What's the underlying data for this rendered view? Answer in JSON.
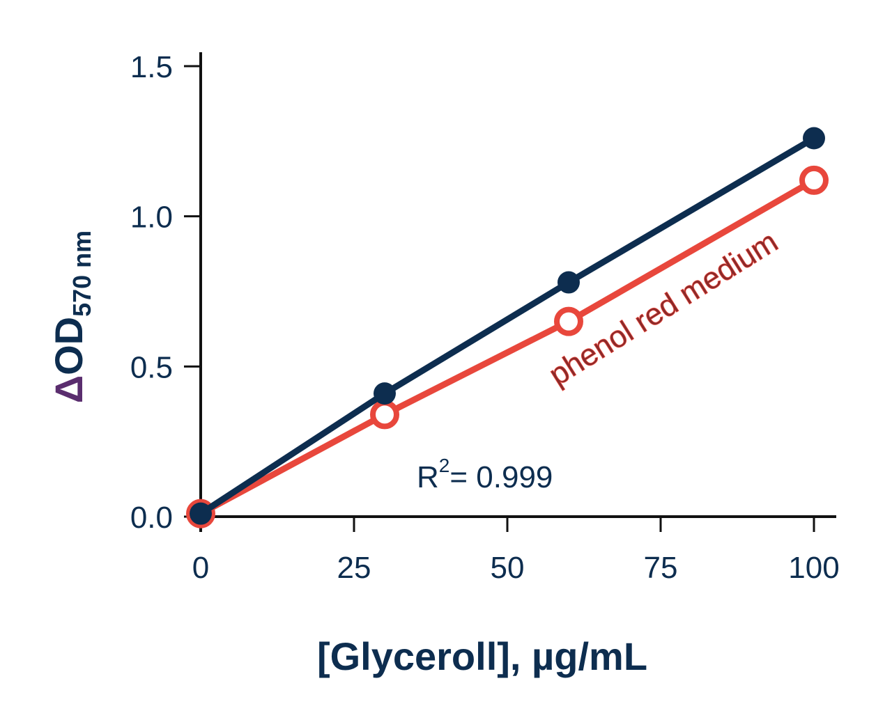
{
  "chart_data": {
    "type": "line",
    "xlabel": "[Glyceroll], µg/mL",
    "ylabel": {
      "delta": "Δ",
      "main": "OD",
      "subscript": "570 nm"
    },
    "xlim": [
      0,
      104
    ],
    "ylim": [
      0,
      1.55
    ],
    "xticks": [
      0,
      25,
      50,
      75,
      100
    ],
    "xtick_labels": [
      "0",
      "25",
      "50",
      "75",
      "100"
    ],
    "yticks": [
      0.0,
      0.5,
      1.0,
      1.5
    ],
    "ytick_labels": [
      "0.0",
      "0.5",
      "1.0",
      "1.5"
    ],
    "grid": false,
    "series": [
      {
        "marker": "filled-circle",
        "color": "#0d2d4f",
        "x": [
          0,
          30,
          60,
          100
        ],
        "y": [
          0.01,
          0.41,
          0.78,
          1.26
        ]
      },
      {
        "name": "phenol red medium",
        "marker": "open-circle",
        "color": "#e8473c",
        "x": [
          0,
          30,
          60,
          100
        ],
        "y": [
          0.01,
          0.34,
          0.65,
          1.12
        ]
      }
    ],
    "annotations": [
      {
        "base": "R",
        "sup": "2",
        "rest": "= 0.999"
      }
    ]
  }
}
